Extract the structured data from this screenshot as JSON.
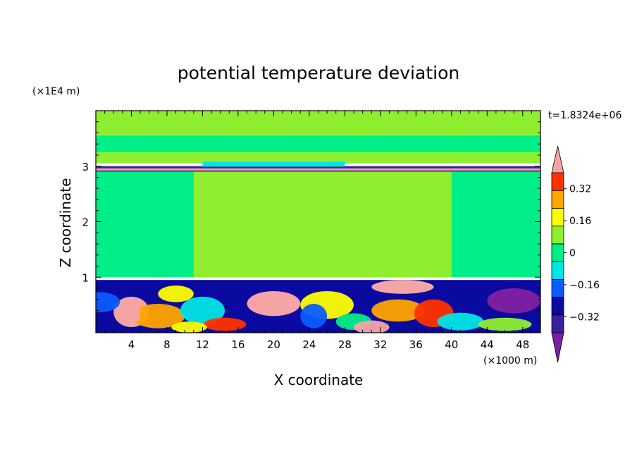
{
  "chart_data": {
    "type": "heatmap",
    "title": "potential temperature deviation",
    "xlabel": "X coordinate",
    "ylabel": "Z coordinate",
    "x_unit": "(×1000 m)",
    "y_unit": "(×1E4 m)",
    "time_label": "t=1.8324e+06",
    "xlim": [
      0,
      50
    ],
    "ylim": [
      0,
      4
    ],
    "x_ticks": [
      4,
      8,
      12,
      16,
      20,
      24,
      28,
      32,
      36,
      40,
      44,
      48
    ],
    "y_ticks": [
      1,
      2,
      3
    ],
    "colorbar": {
      "levels": [
        -0.4,
        -0.32,
        -0.24,
        -0.16,
        -0.08,
        0,
        0.08,
        0.16,
        0.24,
        0.32,
        0.4
      ],
      "labels": [
        "0.32",
        "0.16",
        "0",
        "−0.16",
        "−0.32"
      ],
      "label_values": [
        0.32,
        0.16,
        0,
        -0.16,
        -0.32
      ],
      "colors": [
        "#7b1fa2",
        "#3a1f9e",
        "#0a0aa0",
        "#0a5cff",
        "#00e5e5",
        "#00ee88",
        "#90ee30",
        "#ffff00",
        "#ffa500",
        "#ff3300",
        "#f4a4a4"
      ]
    },
    "regions": [
      {
        "name": "upper-layer",
        "x": [
          0,
          50
        ],
        "z": [
          3.05,
          4.0
        ],
        "value": 0.05
      },
      {
        "name": "upper-band",
        "x": [
          0,
          50
        ],
        "z": [
          3.25,
          3.55
        ],
        "value": -0.05
      },
      {
        "name": "inversion-thin-band",
        "x": [
          0,
          50
        ],
        "z": [
          2.9,
          3.0
        ],
        "value": -0.35
      },
      {
        "name": "middle-layer",
        "x": [
          0,
          50
        ],
        "z": [
          1.0,
          2.9
        ],
        "value": -0.04
      },
      {
        "name": "middle-plume",
        "x": [
          11,
          40
        ],
        "z": [
          1.0,
          2.9
        ],
        "value": 0.04
      },
      {
        "name": "lower-turbulent-layer",
        "x": [
          0,
          50
        ],
        "z": [
          0,
          0.95
        ],
        "value": -0.3
      },
      {
        "name": "warm-blob-1",
        "x": [
          2,
          6
        ],
        "z": [
          0.1,
          0.65
        ],
        "value": 0.45
      },
      {
        "name": "warm-blob-2",
        "x": [
          17,
          23
        ],
        "z": [
          0.3,
          0.75
        ],
        "value": 0.45
      },
      {
        "name": "warm-blob-3",
        "x": [
          31,
          38
        ],
        "z": [
          0.7,
          0.95
        ],
        "value": 0.45
      },
      {
        "name": "cold-core-east",
        "x": [
          44,
          50
        ],
        "z": [
          0.35,
          0.8
        ],
        "value": -0.42
      }
    ]
  }
}
